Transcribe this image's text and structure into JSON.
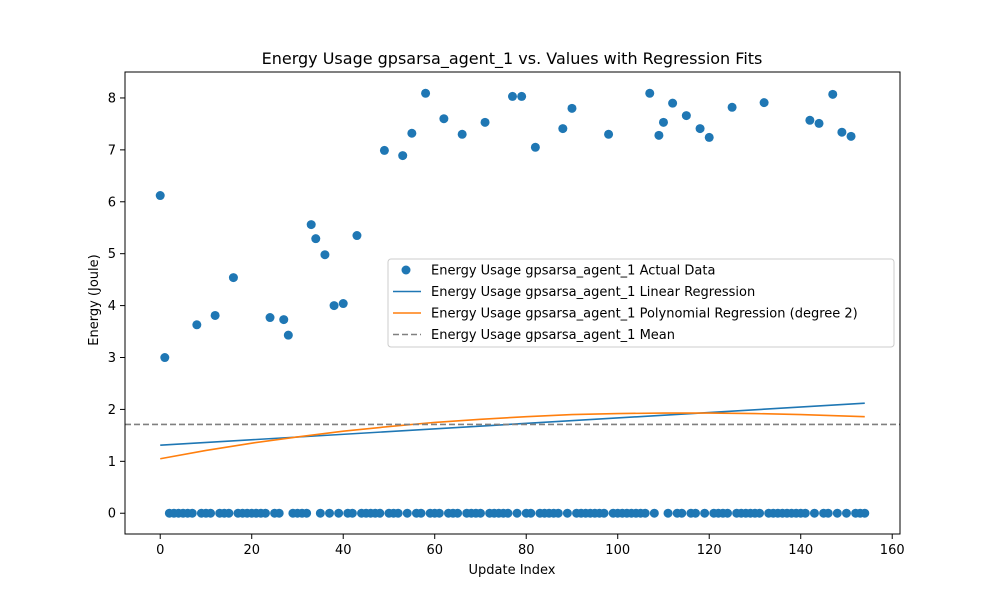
{
  "chart_data": {
    "type": "scatter",
    "title": "Energy Usage gpsarsa_agent_1 vs. Values with Regression Fits",
    "xlabel": "Update Index",
    "ylabel": "Energy (Joule)",
    "xlim": [
      -7.7,
      161.7
    ],
    "ylim": [
      -0.4,
      8.5
    ],
    "xticks": [
      0,
      20,
      40,
      60,
      80,
      100,
      120,
      140,
      160
    ],
    "yticks": [
      0,
      1,
      2,
      3,
      4,
      5,
      6,
      7,
      8
    ],
    "grid": false,
    "legend_position": "center-right",
    "series": [
      {
        "name": "Energy Usage gpsarsa_agent_1 Actual Data",
        "kind": "scatter",
        "color": "#1f77b4",
        "points": [
          [
            0,
            6.12
          ],
          [
            1,
            3.0
          ],
          [
            8,
            3.63
          ],
          [
            12,
            3.81
          ],
          [
            16,
            4.54
          ],
          [
            24,
            3.77
          ],
          [
            27,
            3.73
          ],
          [
            28,
            3.43
          ],
          [
            33,
            5.56
          ],
          [
            34,
            5.29
          ],
          [
            36,
            4.98
          ],
          [
            38,
            4.0
          ],
          [
            40,
            4.04
          ],
          [
            43,
            5.35
          ],
          [
            49,
            6.99
          ],
          [
            53,
            6.89
          ],
          [
            55,
            7.32
          ],
          [
            58,
            8.09
          ],
          [
            62,
            7.6
          ],
          [
            66,
            7.3
          ],
          [
            71,
            7.53
          ],
          [
            77,
            8.03
          ],
          [
            79,
            8.03
          ],
          [
            82,
            7.05
          ],
          [
            88,
            7.41
          ],
          [
            90,
            7.8
          ],
          [
            98,
            7.3
          ],
          [
            107,
            8.09
          ],
          [
            109,
            7.28
          ],
          [
            110,
            7.53
          ],
          [
            112,
            7.9
          ],
          [
            115,
            7.66
          ],
          [
            118,
            7.41
          ],
          [
            120,
            7.24
          ],
          [
            125,
            7.82
          ],
          [
            132,
            7.91
          ],
          [
            142,
            7.57
          ],
          [
            144,
            7.51
          ],
          [
            147,
            8.07
          ],
          [
            149,
            7.34
          ],
          [
            151,
            7.26
          ],
          [
            2,
            0
          ],
          [
            3,
            0
          ],
          [
            4,
            0
          ],
          [
            5,
            0
          ],
          [
            6,
            0
          ],
          [
            7,
            0
          ],
          [
            9,
            0
          ],
          [
            10,
            0
          ],
          [
            11,
            0
          ],
          [
            13,
            0
          ],
          [
            14,
            0
          ],
          [
            15,
            0
          ],
          [
            17,
            0
          ],
          [
            18,
            0
          ],
          [
            19,
            0
          ],
          [
            20,
            0
          ],
          [
            21,
            0
          ],
          [
            22,
            0
          ],
          [
            23,
            0
          ],
          [
            25,
            0
          ],
          [
            26,
            0
          ],
          [
            29,
            0
          ],
          [
            30,
            0
          ],
          [
            31,
            0
          ],
          [
            32,
            0
          ],
          [
            35,
            0
          ],
          [
            37,
            0
          ],
          [
            39,
            0
          ],
          [
            41,
            0
          ],
          [
            42,
            0
          ],
          [
            44,
            0
          ],
          [
            45,
            0
          ],
          [
            46,
            0
          ],
          [
            47,
            0
          ],
          [
            48,
            0
          ],
          [
            50,
            0
          ],
          [
            51,
            0
          ],
          [
            52,
            0
          ],
          [
            54,
            0
          ],
          [
            56,
            0
          ],
          [
            57,
            0
          ],
          [
            59,
            0
          ],
          [
            60,
            0
          ],
          [
            61,
            0
          ],
          [
            63,
            0
          ],
          [
            64,
            0
          ],
          [
            65,
            0
          ],
          [
            67,
            0
          ],
          [
            68,
            0
          ],
          [
            69,
            0
          ],
          [
            70,
            0
          ],
          [
            72,
            0
          ],
          [
            73,
            0
          ],
          [
            74,
            0
          ],
          [
            75,
            0
          ],
          [
            76,
            0
          ],
          [
            78,
            0
          ],
          [
            80,
            0
          ],
          [
            81,
            0
          ],
          [
            83,
            0
          ],
          [
            84,
            0
          ],
          [
            85,
            0
          ],
          [
            86,
            0
          ],
          [
            87,
            0
          ],
          [
            89,
            0
          ],
          [
            91,
            0
          ],
          [
            92,
            0
          ],
          [
            93,
            0
          ],
          [
            94,
            0
          ],
          [
            95,
            0
          ],
          [
            96,
            0
          ],
          [
            97,
            0
          ],
          [
            99,
            0
          ],
          [
            100,
            0
          ],
          [
            101,
            0
          ],
          [
            102,
            0
          ],
          [
            103,
            0
          ],
          [
            104,
            0
          ],
          [
            105,
            0
          ],
          [
            106,
            0
          ],
          [
            108,
            0
          ],
          [
            111,
            0
          ],
          [
            113,
            0
          ],
          [
            114,
            0
          ],
          [
            116,
            0
          ],
          [
            117,
            0
          ],
          [
            119,
            0
          ],
          [
            121,
            0
          ],
          [
            122,
            0
          ],
          [
            123,
            0
          ],
          [
            124,
            0
          ],
          [
            126,
            0
          ],
          [
            127,
            0
          ],
          [
            128,
            0
          ],
          [
            129,
            0
          ],
          [
            130,
            0
          ],
          [
            131,
            0
          ],
          [
            133,
            0
          ],
          [
            134,
            0
          ],
          [
            135,
            0
          ],
          [
            136,
            0
          ],
          [
            137,
            0
          ],
          [
            138,
            0
          ],
          [
            139,
            0
          ],
          [
            140,
            0
          ],
          [
            141,
            0
          ],
          [
            143,
            0
          ],
          [
            145,
            0
          ],
          [
            146,
            0
          ],
          [
            148,
            0
          ],
          [
            150,
            0
          ],
          [
            152,
            0
          ],
          [
            153,
            0
          ],
          [
            154,
            0
          ]
        ]
      },
      {
        "name": "Energy Usage gpsarsa_agent_1 Linear Regression",
        "kind": "line",
        "color": "#1f77b4",
        "dash": "solid",
        "x": [
          0,
          154
        ],
        "y": [
          1.31,
          2.12
        ]
      },
      {
        "name": "Energy Usage gpsarsa_agent_1 Polynomial Regression (degree 2)",
        "kind": "line",
        "color": "#ff7f0e",
        "dash": "solid",
        "x": [
          0,
          10,
          20,
          30,
          40,
          50,
          60,
          70,
          80,
          90,
          100,
          110,
          120,
          130,
          140,
          154
        ],
        "y": [
          1.05,
          1.21,
          1.35,
          1.47,
          1.58,
          1.67,
          1.75,
          1.81,
          1.86,
          1.9,
          1.92,
          1.93,
          1.93,
          1.92,
          1.9,
          1.86
        ]
      },
      {
        "name": "Energy Usage gpsarsa_agent_1 Mean",
        "kind": "hline",
        "color": "#808080",
        "dash": "dashed",
        "y": 1.71
      }
    ]
  }
}
